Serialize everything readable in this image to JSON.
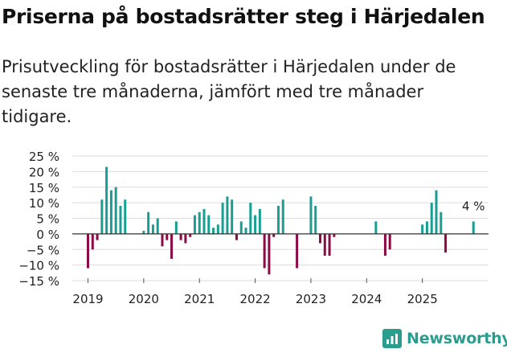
{
  "header": {
    "title": "Priserna på bostadsrätter steg i Härjedalen",
    "subtitle": "Prisutveckling för bostadsrätter i Härjedalen under de senaste tre månaderna, jämfört med tre månader tidigare."
  },
  "brand": {
    "name": "Newsworthy",
    "icon": "newsworthy-logo-icon"
  },
  "colors": {
    "positive": "#1a9e94",
    "negative": "#8c0b47",
    "grid": "#dddddd",
    "zero": "#333333"
  },
  "chart_data": {
    "type": "bar",
    "ylim": [
      -15,
      25
    ],
    "yticks": [
      -15,
      -10,
      -5,
      0,
      5,
      10,
      15,
      20,
      25
    ],
    "ytick_labels": [
      "−15 %",
      "−10 %",
      "−5 %",
      "0 %",
      "5 %",
      "10 %",
      "15 %",
      "20 %",
      "25 %"
    ],
    "x_labels": [
      "2019",
      "2020",
      "2021",
      "2022",
      "2023",
      "2024",
      "2025"
    ],
    "start": "2019-01",
    "annotation": {
      "text": "4 %",
      "month_index": 83
    },
    "values": [
      -11,
      -5,
      -2,
      11,
      21.5,
      14,
      15,
      9,
      11,
      null,
      null,
      null,
      1,
      7,
      3,
      5,
      -4,
      -2,
      -8,
      4,
      -2,
      -3,
      -1,
      6,
      7,
      8,
      6,
      2,
      3,
      10,
      12,
      11,
      -2,
      4,
      2,
      10,
      6,
      8,
      -11,
      -13,
      -1,
      9,
      11,
      null,
      null,
      -11,
      null,
      null,
      12,
      9,
      -3,
      -7,
      -7,
      -1,
      null,
      null,
      null,
      null,
      null,
      null,
      null,
      null,
      4,
      null,
      -7,
      -5,
      null,
      null,
      null,
      null,
      null,
      null,
      3,
      4,
      10,
      14,
      7,
      -6,
      null,
      null,
      null,
      null,
      null,
      4
    ]
  }
}
